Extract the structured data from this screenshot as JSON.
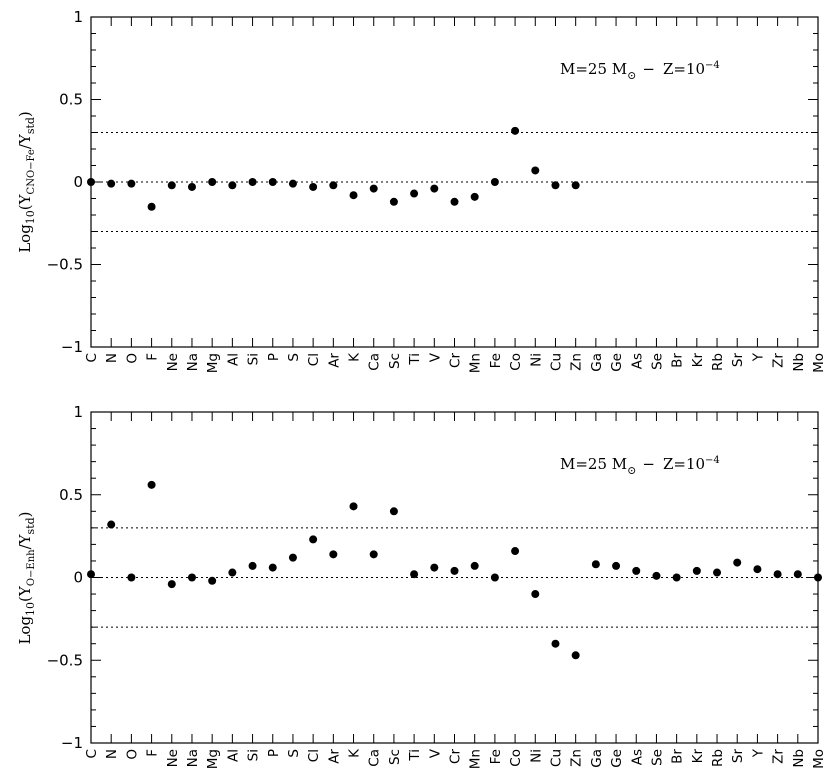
{
  "chart_data": [
    {
      "type": "scatter",
      "ylabel": {
        "base": "Log",
        "sub1": "10",
        "paren_open": "(Y",
        "num_sub": "CNO−Fe",
        "slash": "/Y",
        "den_sub": "std",
        "paren_close": ")"
      },
      "annotation": {
        "m": "M=25 M",
        "sun": "⊙",
        "dash": "−",
        "z": "Z=10",
        "exp": "−4"
      },
      "ylim": [
        -1,
        1
      ],
      "yticks": [
        {
          "v": 1,
          "label": "1"
        },
        {
          "v": 0.5,
          "label": "0.5"
        },
        {
          "v": 0,
          "label": "0"
        },
        {
          "v": -0.5,
          "label": "−0.5"
        },
        {
          "v": -1,
          "label": "−1"
        }
      ],
      "reference_lines": [
        0.3,
        0,
        -0.3
      ],
      "categories": [
        "C",
        "N",
        "O",
        "F",
        "Ne",
        "Na",
        "Mg",
        "Al",
        "Si",
        "P",
        "S",
        "Cl",
        "Ar",
        "K",
        "Ca",
        "Sc",
        "Ti",
        "V",
        "Cr",
        "Mn",
        "Fe",
        "Co",
        "Ni",
        "Cu",
        "Zn",
        "Ga",
        "Ge",
        "As",
        "Se",
        "Br",
        "Kr",
        "Rb",
        "Sr",
        "Y",
        "Zr",
        "Nb",
        "Mo"
      ],
      "values": [
        0.0,
        -0.01,
        -0.01,
        -0.15,
        -0.02,
        -0.03,
        0.0,
        -0.02,
        0.0,
        0.0,
        -0.01,
        -0.03,
        -0.02,
        -0.08,
        -0.04,
        -0.12,
        -0.07,
        -0.04,
        -0.12,
        -0.09,
        0.0,
        0.31,
        0.07,
        -0.02,
        -0.02,
        null,
        null,
        null,
        null,
        null,
        null,
        null,
        null,
        null,
        null,
        null,
        null
      ]
    },
    {
      "type": "scatter",
      "ylabel": {
        "base": "Log",
        "sub1": "10",
        "paren_open": "(Y",
        "num_sub": "O−Enh",
        "slash": "/Y",
        "den_sub": "std",
        "paren_close": ")"
      },
      "annotation": {
        "m": "M=25 M",
        "sun": "⊙",
        "dash": "−",
        "z": "Z=10",
        "exp": "−4"
      },
      "ylim": [
        -1,
        1
      ],
      "yticks": [
        {
          "v": 1,
          "label": "1"
        },
        {
          "v": 0.5,
          "label": "0.5"
        },
        {
          "v": 0,
          "label": "0"
        },
        {
          "v": -0.5,
          "label": "−0.5"
        },
        {
          "v": -1,
          "label": "−1"
        }
      ],
      "reference_lines": [
        0.3,
        0,
        -0.3
      ],
      "categories": [
        "C",
        "N",
        "O",
        "F",
        "Ne",
        "Na",
        "Mg",
        "Al",
        "Si",
        "P",
        "S",
        "Cl",
        "Ar",
        "K",
        "Ca",
        "Sc",
        "Ti",
        "V",
        "Cr",
        "Mn",
        "Fe",
        "Co",
        "Ni",
        "Cu",
        "Zn",
        "Ga",
        "Ge",
        "As",
        "Se",
        "Br",
        "Kr",
        "Rb",
        "Sr",
        "Y",
        "Zr",
        "Nb",
        "Mo"
      ],
      "values": [
        0.02,
        0.32,
        0.0,
        0.56,
        -0.04,
        0.0,
        -0.02,
        0.03,
        0.07,
        0.06,
        0.12,
        0.23,
        0.14,
        0.43,
        0.14,
        0.4,
        0.02,
        0.06,
        0.04,
        0.07,
        0.0,
        0.16,
        -0.1,
        -0.4,
        -0.47,
        0.08,
        0.07,
        0.04,
        0.01,
        0.0,
        0.04,
        0.03,
        0.09,
        0.05,
        0.02,
        0.02,
        0.0
      ]
    }
  ]
}
